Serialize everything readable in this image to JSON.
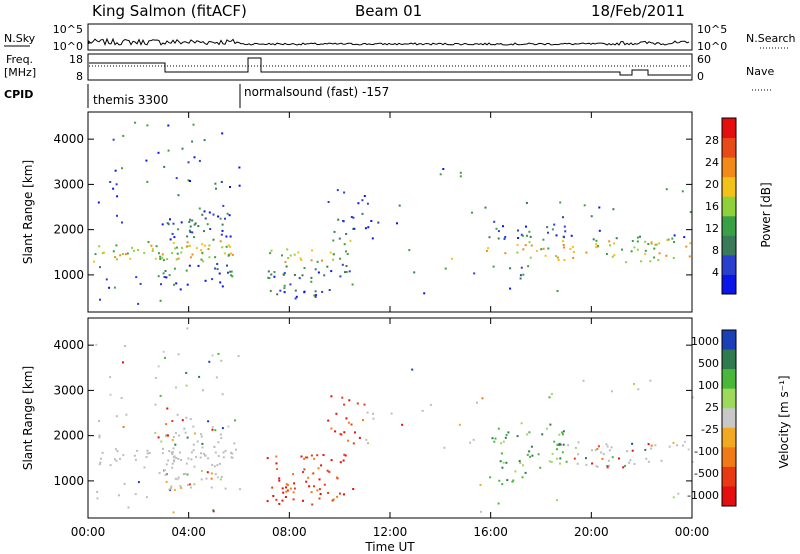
{
  "header": {
    "station": "King Salmon (fitACF)",
    "beam": "Beam 01",
    "date": "18/Feb/2011"
  },
  "noise_panel": {
    "left_label": "N.Sky",
    "left_ticks": [
      "10^5",
      "10^0"
    ],
    "right_ticks": [
      "10^5",
      "10^0"
    ],
    "right_label": "N.Search"
  },
  "freq_panel": {
    "left_label_1": "Freq.",
    "left_label_2": "[MHz]",
    "left_ticks": [
      "18",
      "8"
    ],
    "right_ticks": [
      "60",
      "0"
    ],
    "right_label": "Nave"
  },
  "cpid": {
    "label": "CPID",
    "modes": [
      "themis 3300",
      "normalsound (fast) -157"
    ]
  },
  "colors": {
    "power_scale": [
      "#0b15e8",
      "#2a3fd0",
      "#3a7a5a",
      "#3aa046",
      "#8ed13a",
      "#f2c218",
      "#f28a18",
      "#e84a18",
      "#e40e0e"
    ],
    "velocity_scale": [
      "#1a3fb6",
      "#2f7a4e",
      "#49b83a",
      "#9dd95c",
      "#c8c8c8",
      "#f2a820",
      "#f07a18",
      "#e83a12",
      "#e40e0e"
    ],
    "ground_scatter": "#bdbdbd"
  },
  "chart_data": [
    {
      "type": "heatmap",
      "title": "Power",
      "xlabel": "",
      "ylabel": "Slant Range [km]",
      "xlim": [
        0,
        24
      ],
      "ylim": [
        180,
        4600
      ],
      "y_ticks": [
        "1000",
        "2000",
        "3000",
        "4000"
      ],
      "colorbar": {
        "label": "Power [dB]",
        "ticks": [
          "4",
          "8",
          "12",
          "16",
          "20",
          "24",
          "28"
        ],
        "range": [
          0,
          30
        ]
      }
    },
    {
      "type": "heatmap",
      "title": "Velocity",
      "xlabel": "Time UT",
      "ylabel": "Slant Range [km]",
      "xlim": [
        0,
        24
      ],
      "ylim": [
        180,
        4600
      ],
      "x_ticks": [
        "00:00",
        "04:00",
        "08:00",
        "12:00",
        "16:00",
        "20:00",
        "00:00"
      ],
      "y_ticks": [
        "1000",
        "2000",
        "3000",
        "4000"
      ],
      "colorbar": {
        "label": "Velocity [m s⁻¹]",
        "ticks": [
          "1000",
          "500",
          "100",
          "25",
          "-25",
          "-100",
          "-500",
          "-1000"
        ]
      }
    }
  ]
}
